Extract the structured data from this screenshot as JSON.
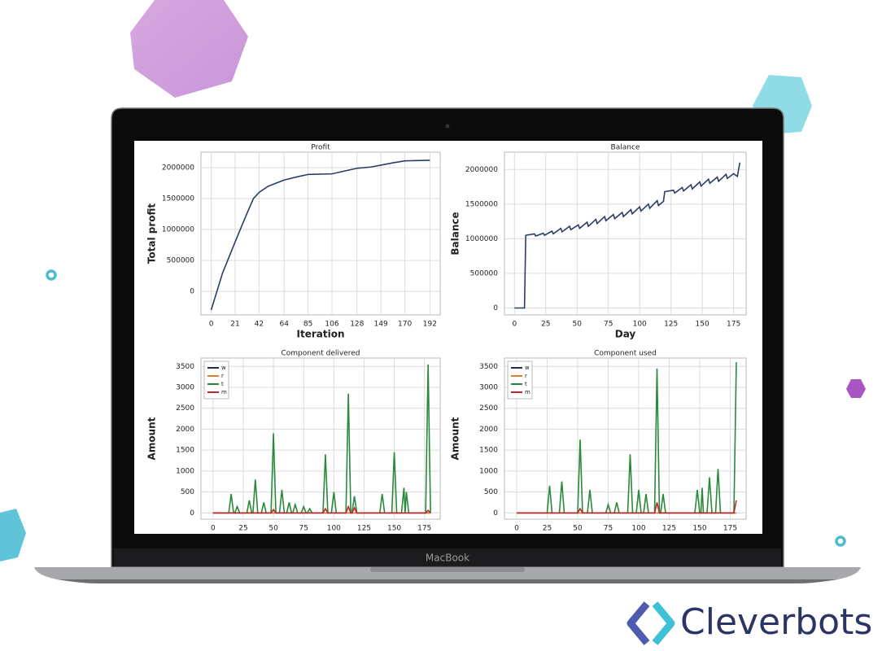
{
  "chart_data": [
    {
      "type": "line",
      "title": "Profit",
      "xlabel": "Iteration",
      "ylabel": "Total profit",
      "color": "#2c3e66",
      "grid": true,
      "x": [
        0,
        10,
        21,
        30,
        37,
        42,
        50,
        64,
        75,
        85,
        106,
        128,
        140,
        149,
        160,
        170,
        192
      ],
      "values": [
        -300000,
        300000,
        800000,
        1200000,
        1500000,
        1600000,
        1700000,
        1800000,
        1850000,
        1890000,
        1900000,
        1990000,
        2010000,
        2040000,
        2080000,
        2110000,
        2120000
      ],
      "xlim": [
        -9,
        201
      ],
      "xticks": [
        0,
        21,
        42,
        64,
        85,
        106,
        128,
        149,
        170,
        192
      ],
      "ylim": [
        -380000,
        2250000
      ],
      "yticks": [
        0,
        500000,
        1000000,
        1500000,
        2000000
      ]
    },
    {
      "type": "line",
      "title": "Balance",
      "xlabel": "Day",
      "ylabel": "Balance",
      "color": "#2c3e66",
      "grid": true,
      "x": [
        0,
        8,
        9,
        16,
        17,
        23,
        24,
        30,
        31,
        37,
        38,
        44,
        45,
        51,
        52,
        58,
        59,
        65,
        66,
        72,
        73,
        79,
        80,
        86,
        87,
        93,
        94,
        100,
        101,
        107,
        108,
        114,
        115,
        119,
        120,
        127,
        128,
        134,
        135,
        141,
        142,
        148,
        149,
        155,
        156,
        162,
        163,
        169,
        170,
        175,
        178,
        180
      ],
      "values": [
        0,
        0,
        1050000,
        1070000,
        1040000,
        1080000,
        1050000,
        1110000,
        1070000,
        1150000,
        1100000,
        1180000,
        1130000,
        1200000,
        1150000,
        1240000,
        1180000,
        1280000,
        1220000,
        1320000,
        1260000,
        1350000,
        1290000,
        1380000,
        1320000,
        1420000,
        1360000,
        1460000,
        1400000,
        1500000,
        1440000,
        1550000,
        1480000,
        1540000,
        1680000,
        1700000,
        1660000,
        1740000,
        1690000,
        1780000,
        1720000,
        1820000,
        1760000,
        1860000,
        1800000,
        1890000,
        1830000,
        1930000,
        1870000,
        1940000,
        1900000,
        2100000
      ],
      "xlim": [
        -8,
        185
      ],
      "xticks": [
        0,
        25,
        50,
        75,
        100,
        125,
        150,
        175
      ],
      "ylim": [
        -100000,
        2250000
      ],
      "yticks": [
        0,
        500000,
        1000000,
        1500000,
        2000000
      ]
    },
    {
      "type": "line",
      "title": "Component delivered",
      "ylabel": "Amount",
      "grid": true,
      "legend": "upper left",
      "x": [
        0,
        13,
        15,
        17,
        18,
        20,
        22,
        28,
        30,
        32,
        33,
        35,
        37,
        40,
        42,
        44,
        48,
        50,
        52,
        55,
        57,
        59,
        61,
        63,
        65,
        66,
        68,
        70,
        73,
        75,
        77,
        78,
        80,
        82,
        91,
        93,
        95,
        98,
        100,
        102,
        110,
        112,
        114,
        115,
        117,
        119,
        138,
        140,
        142,
        148,
        150,
        152,
        156,
        158,
        159,
        160,
        162,
        176,
        178,
        180
      ],
      "series": [
        {
          "name": "w",
          "color": "#1f2d4f",
          "values": [
            0,
            0,
            0,
            0,
            0,
            0,
            0,
            0,
            0,
            0,
            0,
            0,
            0,
            0,
            0,
            0,
            0,
            0,
            0,
            0,
            0,
            0,
            0,
            0,
            0,
            0,
            0,
            0,
            0,
            0,
            0,
            0,
            0,
            0,
            0,
            0,
            0,
            0,
            0,
            0,
            0,
            0,
            0,
            0,
            0,
            0,
            0,
            0,
            0,
            0,
            0,
            0,
            0,
            0,
            0,
            0,
            0,
            0,
            0,
            0
          ]
        },
        {
          "name": "r",
          "color": "#d9822b",
          "values": [
            0,
            0,
            0,
            0,
            0,
            0,
            0,
            0,
            0,
            0,
            0,
            0,
            0,
            0,
            0,
            0,
            0,
            0,
            0,
            0,
            0,
            0,
            0,
            0,
            0,
            0,
            0,
            0,
            0,
            0,
            0,
            0,
            0,
            0,
            0,
            0,
            0,
            0,
            0,
            0,
            0,
            0,
            0,
            0,
            0,
            0,
            0,
            0,
            0,
            0,
            0,
            0,
            0,
            0,
            0,
            0,
            0,
            0,
            0,
            0
          ]
        },
        {
          "name": "t",
          "color": "#2a8a3a",
          "values": [
            0,
            0,
            450,
            0,
            0,
            150,
            0,
            0,
            300,
            0,
            0,
            800,
            0,
            0,
            250,
            0,
            0,
            1900,
            0,
            0,
            550,
            0,
            0,
            250,
            0,
            0,
            200,
            0,
            0,
            150,
            0,
            0,
            100,
            0,
            0,
            1400,
            0,
            0,
            500,
            0,
            0,
            2850,
            0,
            0,
            400,
            0,
            0,
            450,
            0,
            0,
            1450,
            0,
            0,
            600,
            0,
            500,
            0,
            0,
            3550,
            0
          ]
        },
        {
          "name": "m",
          "color": "#c0282d",
          "values": [
            0,
            0,
            0,
            0,
            0,
            0,
            0,
            0,
            0,
            0,
            0,
            0,
            0,
            0,
            0,
            0,
            0,
            80,
            0,
            0,
            0,
            0,
            0,
            0,
            0,
            0,
            0,
            0,
            0,
            0,
            0,
            0,
            0,
            0,
            0,
            100,
            0,
            0,
            0,
            0,
            0,
            150,
            0,
            0,
            120,
            0,
            0,
            0,
            0,
            0,
            0,
            0,
            0,
            0,
            0,
            0,
            0,
            0,
            60,
            0
          ]
        }
      ],
      "xlim": [
        -10,
        188
      ],
      "xticks": [
        0,
        25,
        50,
        75,
        100,
        125,
        150,
        175
      ],
      "ylim": [
        -150,
        3700
      ],
      "yticks": [
        0,
        500,
        1000,
        1500,
        2000,
        2500,
        3000,
        3500
      ]
    },
    {
      "type": "line",
      "title": "Component used",
      "ylabel": "Amount",
      "grid": true,
      "legend": "upper left",
      "x": [
        0,
        25,
        27,
        29,
        35,
        37,
        39,
        50,
        52,
        54,
        58,
        60,
        62,
        73,
        75,
        77,
        80,
        82,
        84,
        91,
        93,
        95,
        98,
        100,
        102,
        104,
        106,
        108,
        113,
        115,
        117,
        118,
        120,
        122,
        146,
        148,
        150,
        151,
        152,
        153,
        156,
        158,
        160,
        163,
        165,
        167,
        178,
        180
      ],
      "series": [
        {
          "name": "w",
          "color": "#1f2d4f",
          "values": [
            0,
            0,
            0,
            0,
            0,
            0,
            0,
            0,
            0,
            0,
            0,
            0,
            0,
            0,
            0,
            0,
            0,
            0,
            0,
            0,
            0,
            0,
            0,
            0,
            0,
            0,
            0,
            0,
            0,
            0,
            0,
            0,
            0,
            0,
            0,
            0,
            0,
            0,
            0,
            0,
            0,
            0,
            0,
            0,
            0,
            0,
            0,
            0
          ]
        },
        {
          "name": "r",
          "color": "#d9822b",
          "values": [
            0,
            0,
            0,
            0,
            0,
            0,
            0,
            0,
            0,
            0,
            0,
            0,
            0,
            0,
            0,
            0,
            0,
            0,
            0,
            0,
            0,
            0,
            0,
            0,
            0,
            0,
            0,
            0,
            0,
            0,
            0,
            0,
            0,
            0,
            0,
            0,
            0,
            0,
            0,
            0,
            0,
            0,
            0,
            0,
            0,
            0,
            0,
            0
          ]
        },
        {
          "name": "t",
          "color": "#2a8a3a",
          "values": [
            0,
            0,
            650,
            0,
            0,
            750,
            0,
            0,
            1750,
            0,
            0,
            550,
            0,
            0,
            200,
            0,
            0,
            250,
            0,
            0,
            1400,
            0,
            0,
            550,
            0,
            0,
            450,
            0,
            0,
            3450,
            0,
            0,
            450,
            0,
            0,
            550,
            0,
            0,
            600,
            0,
            0,
            850,
            0,
            0,
            1050,
            0,
            0,
            3600
          ]
        },
        {
          "name": "m",
          "color": "#c0282d",
          "values": [
            0,
            0,
            0,
            0,
            0,
            0,
            0,
            0,
            100,
            0,
            0,
            0,
            0,
            0,
            0,
            0,
            0,
            0,
            0,
            0,
            0,
            0,
            0,
            0,
            0,
            0,
            0,
            0,
            0,
            250,
            0,
            0,
            0,
            0,
            0,
            0,
            0,
            0,
            0,
            0,
            0,
            0,
            0,
            0,
            0,
            0,
            0,
            300
          ]
        }
      ],
      "xlim": [
        -10,
        188
      ],
      "xticks": [
        0,
        25,
        50,
        75,
        100,
        125,
        150,
        175
      ],
      "ylim": [
        -150,
        3700
      ],
      "yticks": [
        0,
        500,
        1000,
        1500,
        2000,
        2500,
        3000,
        3500
      ]
    }
  ],
  "device_label": "MacBook",
  "brand": "Cleverbots"
}
